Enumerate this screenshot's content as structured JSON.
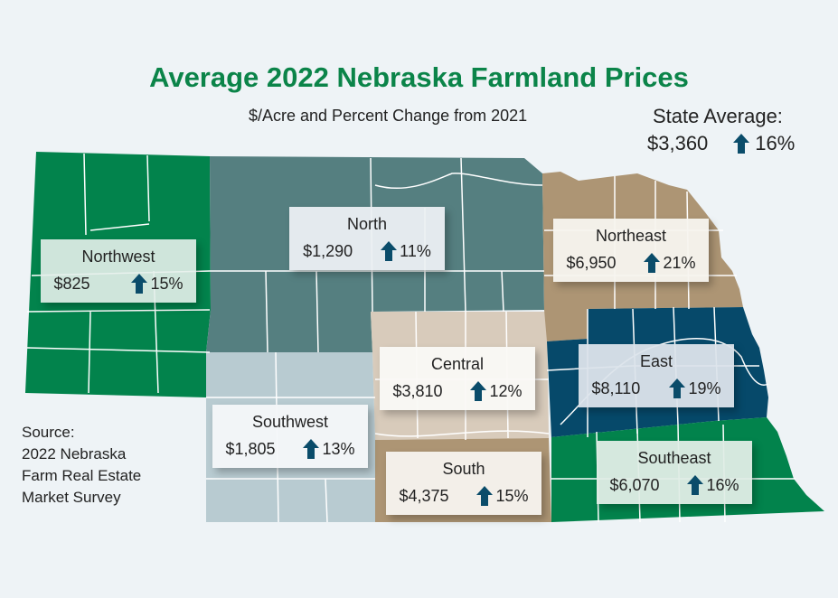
{
  "title": "Average 2022 Nebraska Farmland Prices",
  "subtitle": "$/Acre and Percent Change from 2021",
  "state_average": {
    "label": "State Average:",
    "price": "$3,360",
    "change": "16%",
    "direction": "up"
  },
  "colors": {
    "title": "#0b8449",
    "arrow": "#0a4c6a"
  },
  "regions": [
    {
      "name": "Northwest",
      "price": "$825",
      "change": "15%",
      "direction": "up",
      "fill": "#02834c"
    },
    {
      "name": "North",
      "price": "$1,290",
      "change": "11%",
      "direction": "up",
      "fill": "#557f80"
    },
    {
      "name": "Northeast",
      "price": "$6,950",
      "change": "21%",
      "direction": "up",
      "fill": "#ad9574"
    },
    {
      "name": "Central",
      "price": "$3,810",
      "change": "12%",
      "direction": "up",
      "fill": "#d8cbbb"
    },
    {
      "name": "East",
      "price": "$8,110",
      "change": "19%",
      "direction": "up",
      "fill": "#06496a"
    },
    {
      "name": "Southwest",
      "price": "$1,805",
      "change": "13%",
      "direction": "up",
      "fill": "#b8cbd1"
    },
    {
      "name": "South",
      "price": "$4,375",
      "change": "15%",
      "direction": "up",
      "fill": "#ad9574"
    },
    {
      "name": "Southeast",
      "price": "$6,070",
      "change": "16%",
      "direction": "up",
      "fill": "#02834c"
    }
  ],
  "source": [
    "Source:",
    "2022 Nebraska",
    "Farm Real Estate",
    "Market Survey"
  ]
}
